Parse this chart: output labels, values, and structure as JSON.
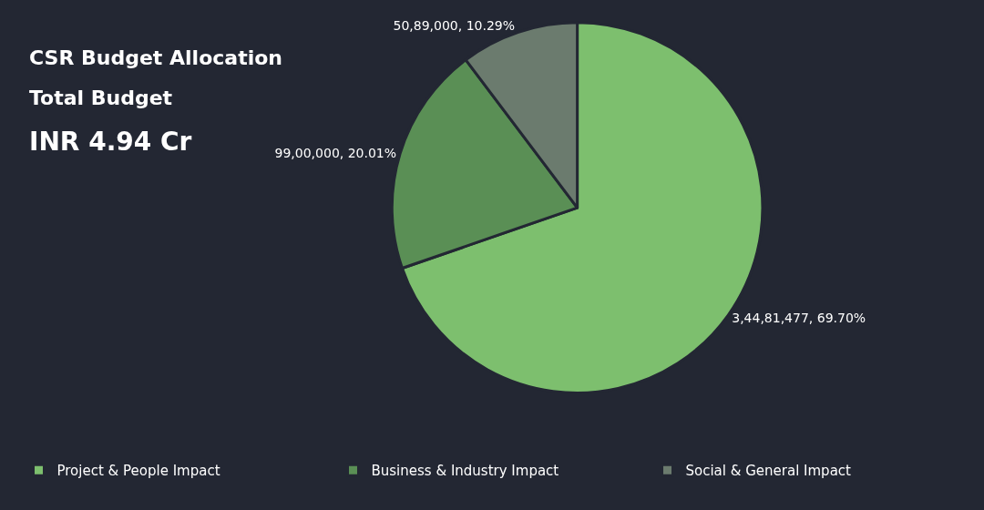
{
  "chart_data": {
    "type": "pie",
    "title": "CSR Budget Allocation",
    "subtitle": "Total Budget",
    "annotations": [
      "INR 4.94 Cr"
    ],
    "categories": [
      "Project & People Impact",
      "Business & Industry Impact",
      "Social & General Impact"
    ],
    "values": [
      34481477,
      9900000,
      5089000
    ],
    "colors": [
      "#7dbf6e",
      "#5a8f55",
      "#6b7b6e"
    ],
    "value_labels": [
      "3,44,81,477, 69.70%",
      "99,00,000, 20.01%",
      "50,89,000, 10.29%"
    ],
    "legend": "bottom"
  }
}
